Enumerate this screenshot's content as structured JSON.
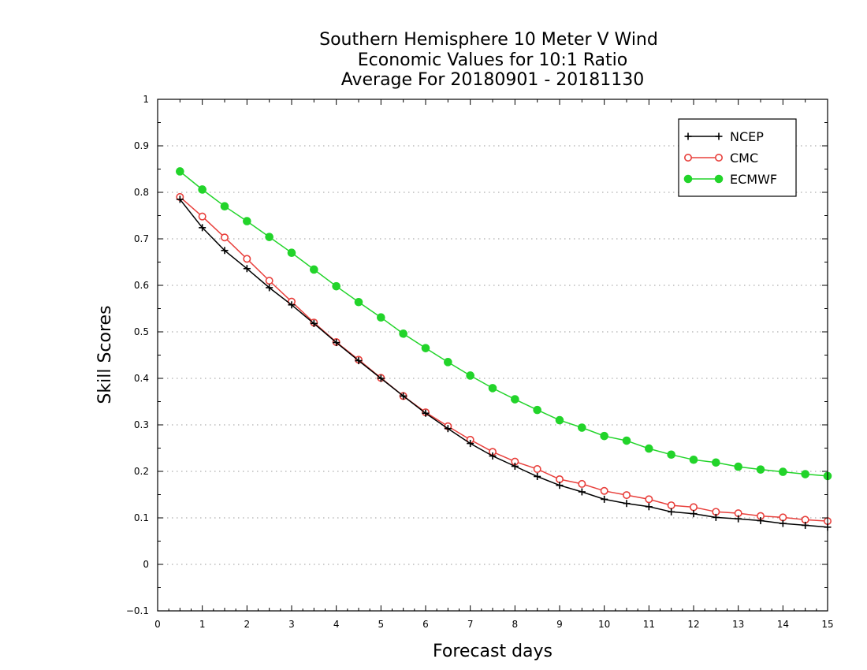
{
  "chart_data": {
    "type": "line",
    "title": [
      "Southern Hemisphere 10 Meter V Wind",
      "Economic Values for 10:1 Ratio",
      "Average For 20180901 - 20181130"
    ],
    "xlabel": "Forecast days",
    "ylabel": "Skill Scores",
    "xlim": [
      0,
      15
    ],
    "ylim": [
      -0.1,
      1
    ],
    "x_ticks": [
      "0",
      "1",
      "2",
      "3",
      "4",
      "5",
      "6",
      "7",
      "8",
      "9",
      "10",
      "11",
      "12",
      "13",
      "14",
      "15"
    ],
    "y_ticks": [
      "−0.1",
      "0",
      "0.1",
      "0.2",
      "0.3",
      "0.4",
      "0.5",
      "0.6",
      "0.7",
      "0.8",
      "0.9",
      "1"
    ],
    "grid": "horizontal-dotted",
    "legend_position": "top-right",
    "x": [
      0.5,
      1,
      1.5,
      2,
      2.5,
      3,
      3.5,
      4,
      4.5,
      5,
      5.5,
      6,
      6.5,
      7,
      7.5,
      8,
      8.5,
      9,
      9.5,
      10,
      10.5,
      11,
      11.5,
      12,
      12.5,
      13,
      13.5,
      14,
      14.5,
      15
    ],
    "series": [
      {
        "name": "NCEP",
        "color": "#000000",
        "marker": "plus",
        "values": [
          0.785,
          0.724,
          0.675,
          0.636,
          0.595,
          0.558,
          0.518,
          0.477,
          0.438,
          0.4,
          0.362,
          0.325,
          0.292,
          0.26,
          0.233,
          0.211,
          0.189,
          0.17,
          0.156,
          0.14,
          0.131,
          0.124,
          0.113,
          0.109,
          0.101,
          0.098,
          0.094,
          0.088,
          0.084,
          0.08
        ]
      },
      {
        "name": "CMC",
        "color": "#e8403c",
        "marker": "open-circle",
        "values": [
          0.79,
          0.748,
          0.703,
          0.657,
          0.61,
          0.565,
          0.52,
          0.478,
          0.44,
          0.401,
          0.362,
          0.327,
          0.297,
          0.268,
          0.242,
          0.221,
          0.205,
          0.183,
          0.173,
          0.158,
          0.149,
          0.14,
          0.127,
          0.123,
          0.113,
          0.11,
          0.104,
          0.101,
          0.096,
          0.093
        ]
      },
      {
        "name": "ECMWF",
        "color": "#22d42a",
        "marker": "filled-circle",
        "values": [
          0.845,
          0.806,
          0.77,
          0.738,
          0.704,
          0.67,
          0.634,
          0.598,
          0.564,
          0.531,
          0.496,
          0.465,
          0.435,
          0.406,
          0.379,
          0.355,
          0.332,
          0.31,
          0.294,
          0.276,
          0.266,
          0.249,
          0.236,
          0.225,
          0.219,
          0.21,
          0.204,
          0.199,
          0.194,
          0.19
        ]
      }
    ]
  }
}
